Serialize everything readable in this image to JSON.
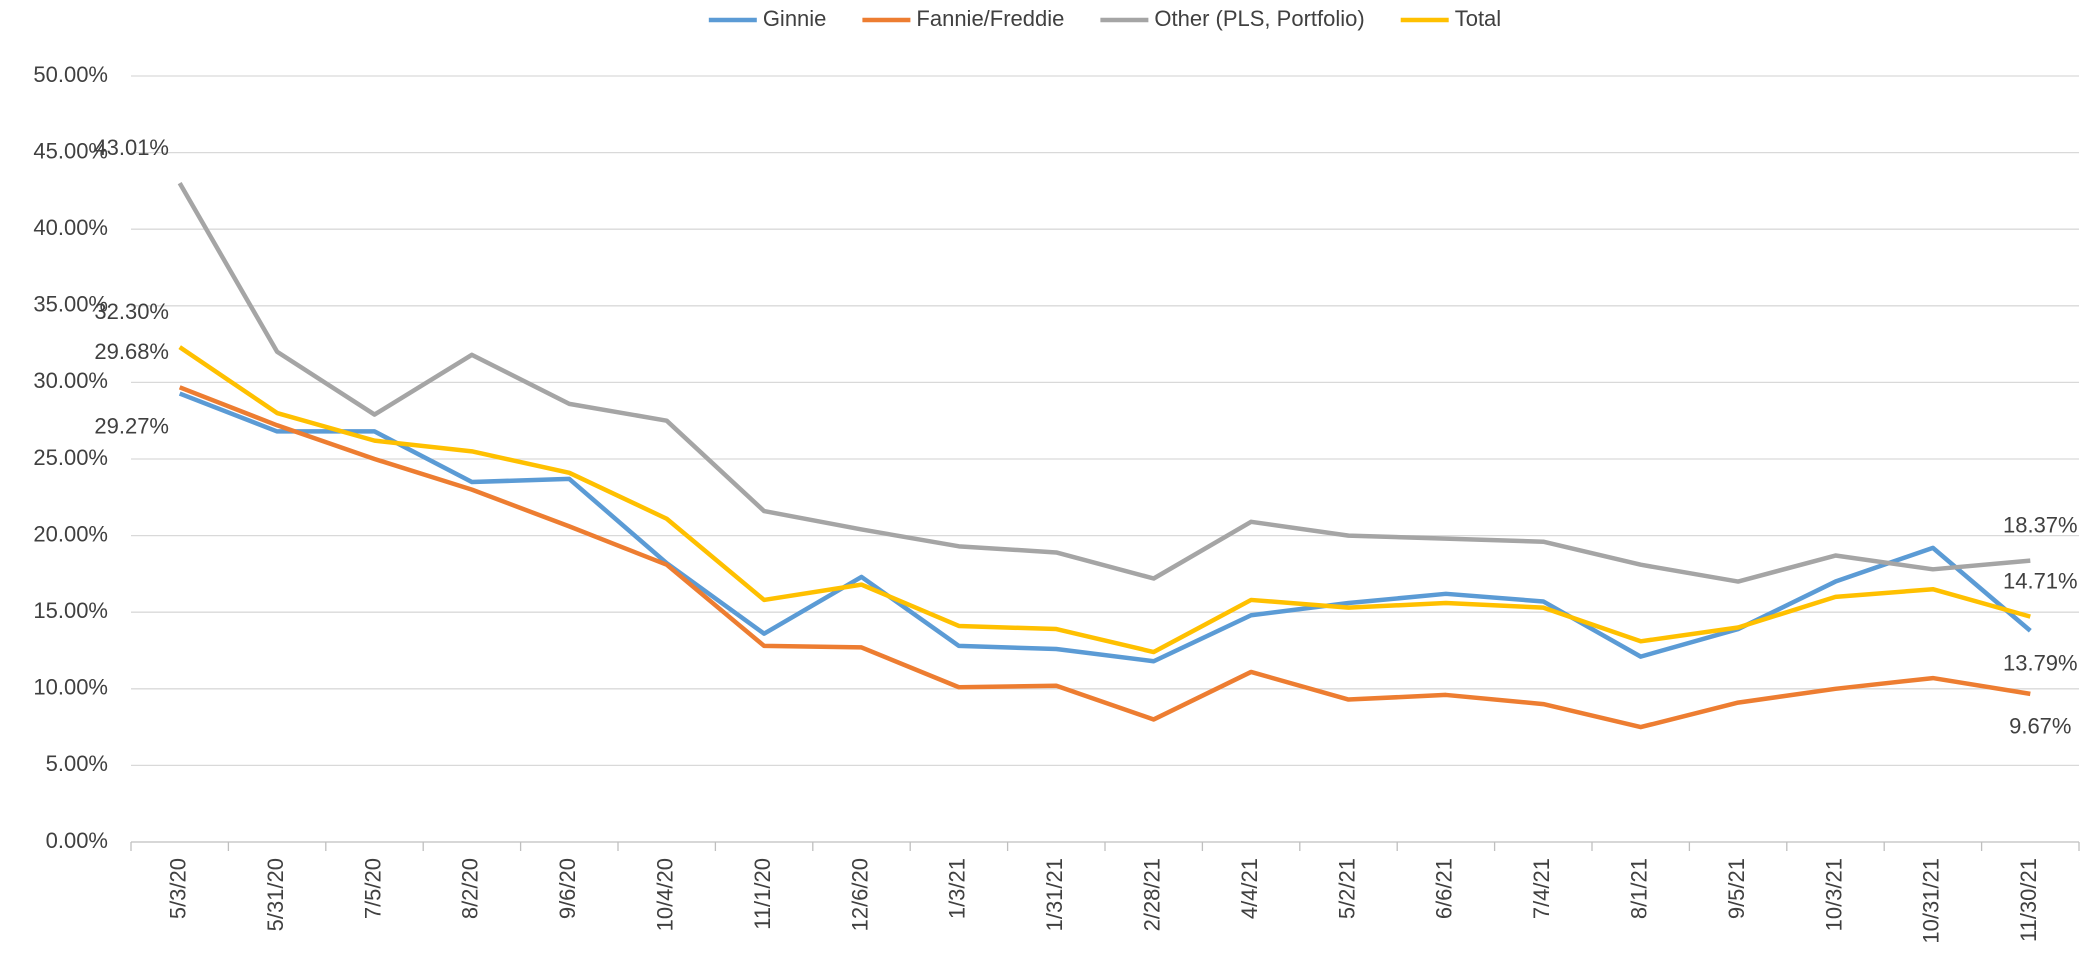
{
  "chart_data": {
    "type": "line",
    "categories": [
      "5/3/20",
      "5/31/20",
      "7/5/20",
      "8/2/20",
      "9/6/20",
      "10/4/20",
      "11/1/20",
      "12/6/20",
      "1/3/21",
      "1/31/21",
      "2/28/21",
      "4/4/21",
      "5/2/21",
      "6/6/21",
      "7/4/21",
      "8/1/21",
      "9/5/21",
      "10/3/21",
      "10/31/21",
      "11/30/21"
    ],
    "series": [
      {
        "name": "Ginnie",
        "color": "#5b9bd5",
        "values": [
          29.27,
          26.8,
          26.8,
          23.5,
          23.7,
          18.2,
          13.6,
          17.3,
          12.8,
          12.6,
          11.8,
          14.8,
          15.6,
          16.2,
          15.7,
          12.1,
          13.9,
          17.0,
          19.2,
          13.79
        ],
        "value_labels": [
          "29.27%",
          null,
          null,
          null,
          null,
          null,
          null,
          null,
          null,
          null,
          null,
          null,
          null,
          null,
          null,
          null,
          null,
          null,
          null,
          "13.79%"
        ]
      },
      {
        "name": "Fannie/Freddie",
        "color": "#ed7d31",
        "values": [
          29.68,
          27.2,
          25.0,
          23.0,
          20.6,
          18.1,
          12.8,
          12.7,
          10.1,
          10.2,
          8.0,
          11.1,
          9.3,
          9.6,
          9.0,
          7.5,
          9.1,
          10.0,
          10.7,
          9.67
        ],
        "value_labels": [
          "29.68%",
          null,
          null,
          null,
          null,
          null,
          null,
          null,
          null,
          null,
          null,
          null,
          null,
          null,
          null,
          null,
          null,
          null,
          null,
          "9.67%"
        ]
      },
      {
        "name": "Other (PLS, Portfolio)",
        "color": "#a5a5a5",
        "values": [
          43.01,
          32.0,
          27.9,
          31.8,
          28.6,
          27.5,
          21.6,
          20.4,
          19.3,
          18.9,
          17.2,
          20.9,
          20.0,
          19.8,
          19.6,
          18.1,
          17.0,
          18.7,
          17.8,
          18.37
        ],
        "value_labels": [
          "43.01%",
          null,
          null,
          null,
          null,
          null,
          null,
          null,
          null,
          null,
          null,
          null,
          null,
          null,
          null,
          null,
          null,
          null,
          null,
          "18.37%"
        ]
      },
      {
        "name": "Total",
        "color": "#ffc000",
        "values": [
          32.3,
          28.0,
          26.2,
          25.5,
          24.1,
          21.1,
          15.8,
          16.8,
          14.1,
          13.9,
          12.4,
          15.8,
          15.3,
          15.6,
          15.3,
          13.1,
          14.0,
          16.0,
          16.5,
          14.71
        ],
        "value_labels": [
          "32.30%",
          null,
          null,
          null,
          null,
          null,
          null,
          null,
          null,
          null,
          null,
          null,
          null,
          null,
          null,
          null,
          null,
          null,
          null,
          "14.71%"
        ]
      }
    ],
    "ylim": [
      0,
      50
    ],
    "yticks": [
      {
        "value": 0,
        "label": "0.00%"
      },
      {
        "value": 5,
        "label": "5.00%"
      },
      {
        "value": 10,
        "label": "10.00%"
      },
      {
        "value": 15,
        "label": "15.00%"
      },
      {
        "value": 20,
        "label": "20.00%"
      },
      {
        "value": 25,
        "label": "25.00%"
      },
      {
        "value": 30,
        "label": "30.00%"
      },
      {
        "value": 35,
        "label": "35.00%"
      },
      {
        "value": 40,
        "label": "40.00%"
      },
      {
        "value": 45,
        "label": "45.00%"
      },
      {
        "value": 50,
        "label": "50.00%"
      }
    ],
    "grid": true,
    "legend": "top"
  }
}
